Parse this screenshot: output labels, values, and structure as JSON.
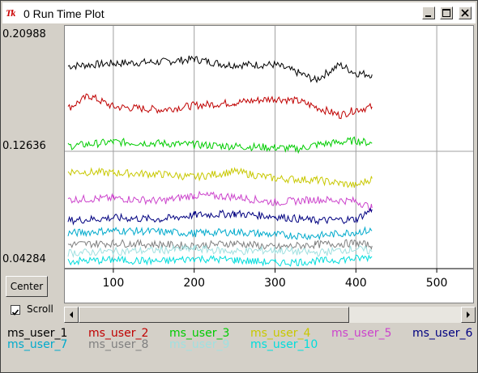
{
  "window": {
    "icon_label": "Tk",
    "title": "0 Run Time Plot"
  },
  "controls": {
    "center_label": "Center",
    "scroll_label": "Scroll",
    "scroll_checked": true
  },
  "chart_data": {
    "type": "line",
    "x_ticks": [
      100,
      200,
      300,
      400,
      500
    ],
    "y_ticks": [
      "0.20988",
      "0.12636",
      "0.04284"
    ],
    "xlim": [
      40,
      545
    ],
    "ylim": [
      0.04284,
      0.20988
    ],
    "grid": true,
    "legend_placement": "bottom",
    "series": [
      {
        "name": "ms_user_1",
        "color": "#000000",
        "x": [
          44,
          100,
          160,
          200,
          240,
          300,
          330,
          350,
          380,
          400,
          420
        ],
        "values": [
          0.187,
          0.189,
          0.19,
          0.192,
          0.188,
          0.188,
          0.182,
          0.177,
          0.188,
          0.182,
          0.181
        ]
      },
      {
        "name": "ms_user_2",
        "color": "#c00000",
        "x": [
          44,
          70,
          100,
          160,
          200,
          250,
          300,
          330,
          380,
          400,
          420
        ],
        "values": [
          0.157,
          0.166,
          0.158,
          0.156,
          0.159,
          0.161,
          0.164,
          0.162,
          0.152,
          0.156,
          0.158
        ]
      },
      {
        "name": "ms_user_3",
        "color": "#00cc00",
        "x": [
          44,
          100,
          160,
          200,
          250,
          300,
          330,
          350,
          400,
          420
        ],
        "values": [
          0.13,
          0.133,
          0.132,
          0.131,
          0.13,
          0.129,
          0.128,
          0.131,
          0.134,
          0.132
        ]
      },
      {
        "name": "ms_user_4",
        "color": "#c8c800",
        "x": [
          44,
          100,
          160,
          200,
          250,
          300,
          350,
          400,
          420
        ],
        "values": [
          0.112,
          0.111,
          0.11,
          0.108,
          0.112,
          0.107,
          0.106,
          0.102,
          0.107
        ]
      },
      {
        "name": "ms_user_5",
        "color": "#cc44cc",
        "x": [
          44,
          100,
          160,
          200,
          250,
          300,
          350,
          400,
          420
        ],
        "values": [
          0.092,
          0.093,
          0.091,
          0.095,
          0.094,
          0.09,
          0.092,
          0.091,
          0.086
        ]
      },
      {
        "name": "ms_user_6",
        "color": "#000080",
        "x": [
          44,
          100,
          160,
          200,
          250,
          300,
          350,
          400,
          420
        ],
        "values": [
          0.077,
          0.079,
          0.078,
          0.081,
          0.082,
          0.08,
          0.077,
          0.078,
          0.085
        ]
      },
      {
        "name": "ms_user_7",
        "color": "#00aacc",
        "x": [
          44,
          100,
          160,
          200,
          250,
          300,
          350,
          400,
          420
        ],
        "values": [
          0.068,
          0.07,
          0.069,
          0.068,
          0.069,
          0.067,
          0.066,
          0.069,
          0.07
        ]
      },
      {
        "name": "ms_user_8",
        "color": "#808080",
        "x": [
          44,
          100,
          160,
          200,
          250,
          300,
          350,
          400,
          420
        ],
        "values": [
          0.06,
          0.061,
          0.06,
          0.059,
          0.061,
          0.058,
          0.06,
          0.061,
          0.059
        ]
      },
      {
        "name": "ms_user_9",
        "color": "#a0e0e0",
        "x": [
          44,
          100,
          160,
          200,
          250,
          300,
          350,
          400,
          420
        ],
        "values": [
          0.054,
          0.055,
          0.056,
          0.057,
          0.055,
          0.056,
          0.054,
          0.057,
          0.055
        ]
      },
      {
        "name": "ms_user_10",
        "color": "#00dddd",
        "x": [
          44,
          100,
          160,
          200,
          250,
          300,
          350,
          400,
          420
        ],
        "values": [
          0.048,
          0.049,
          0.048,
          0.05,
          0.049,
          0.047,
          0.048,
          0.05,
          0.051
        ]
      }
    ]
  }
}
